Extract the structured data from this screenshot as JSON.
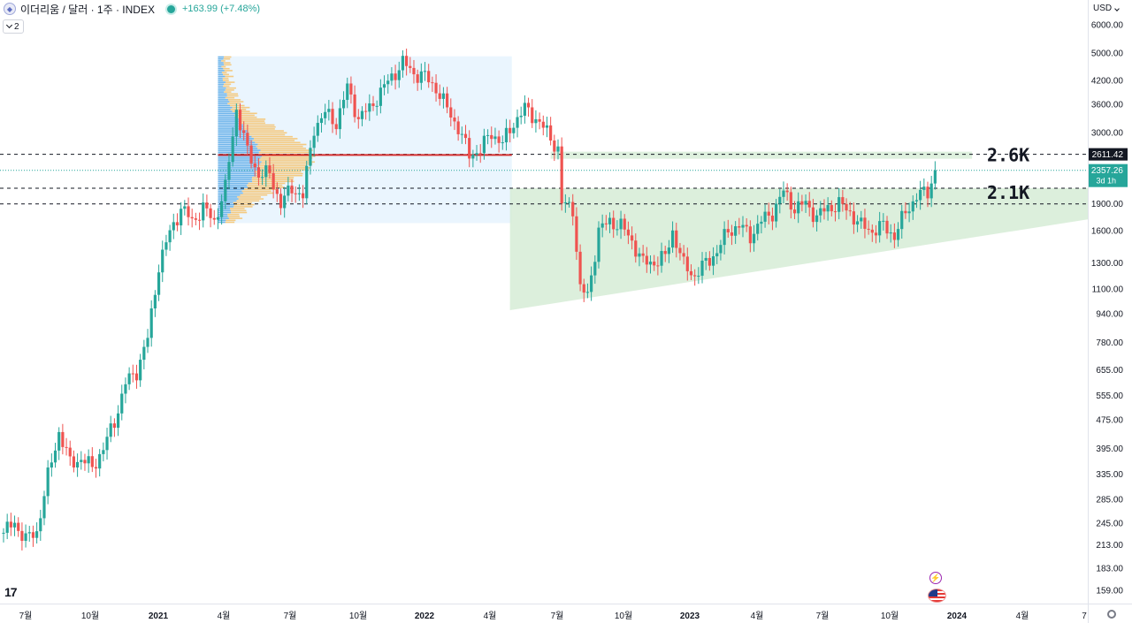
{
  "header": {
    "symbol": "이더리움 / 달러 · 1주 · INDEX",
    "change": "+163.99 (+7.48%)",
    "collapse_count": "2",
    "currency": "USD"
  },
  "icons": [
    "ethereum-icon",
    "market-status-icon",
    "chevron-down-icon",
    "tradingview-logo-icon",
    "flash-event-icon",
    "us-flag-event-icon",
    "gear-icon"
  ],
  "colors": {
    "up": "#26a69a",
    "down": "#ef5350",
    "poc": "#d32f2f",
    "zone_fill": "#d6ecd6",
    "profile_box": "#e3f2fd",
    "profile_blue": "#5aa9e6",
    "profile_orange": "#f6c26b"
  },
  "chart_data": {
    "type": "candlestick",
    "scale": "log",
    "ylim": [
      145,
      6500
    ],
    "y_ticks": [
      "6000.00",
      "5000.00",
      "4200.00",
      "3600.00",
      "3000.00",
      "2611.42",
      "2357.26",
      "1900.00",
      "1600.00",
      "1300.00",
      "1100.00",
      "940.00",
      "780.00",
      "655.00",
      "555.00",
      "475.00",
      "395.00",
      "335.00",
      "285.00",
      "245.00",
      "213.00",
      "183.00",
      "159.00"
    ],
    "x_ticks": [
      "7월",
      "10월",
      "2021",
      "4월",
      "7월",
      "10월",
      "2022",
      "4월",
      "7월",
      "10월",
      "2023",
      "4월",
      "7월",
      "10월",
      "2024",
      "4월",
      "7"
    ],
    "price_label": "2611.42",
    "last_price": "2357.26",
    "countdown": "3d 1h",
    "levels": [
      {
        "label": "2.6K",
        "value": 2611.42
      },
      {
        "label": "2.1K",
        "value": 2100
      },
      {
        "label": "",
        "value": 1900
      }
    ],
    "poc_value": 2600,
    "wedge": {
      "top": 2100,
      "bottom_start": 960,
      "bottom_end": 1720
    },
    "candles_anchor": [
      [
        0,
        230
      ],
      [
        3,
        245
      ],
      [
        6,
        220
      ],
      [
        9,
        232
      ],
      [
        12,
        330
      ],
      [
        15,
        440
      ],
      [
        18,
        360
      ],
      [
        21,
        370
      ],
      [
        24,
        350
      ],
      [
        27,
        395
      ],
      [
        30,
        470
      ],
      [
        33,
        600
      ],
      [
        36,
        650
      ],
      [
        39,
        800
      ],
      [
        42,
        1280
      ],
      [
        45,
        1580
      ],
      [
        48,
        1850
      ],
      [
        51,
        1700
      ],
      [
        54,
        1850
      ],
      [
        57,
        1700
      ],
      [
        60,
        2100
      ],
      [
        63,
        3500
      ],
      [
        66,
        2650
      ],
      [
        69,
        2300
      ],
      [
        72,
        2300
      ],
      [
        75,
        1900
      ],
      [
        78,
        2100
      ],
      [
        81,
        2000
      ],
      [
        84,
        3100
      ],
      [
        87,
        3400
      ],
      [
        90,
        3200
      ],
      [
        93,
        4000
      ],
      [
        96,
        3300
      ],
      [
        99,
        3500
      ],
      [
        102,
        3900
      ],
      [
        105,
        4300
      ],
      [
        108,
        4700
      ],
      [
        111,
        4400
      ],
      [
        114,
        4300
      ],
      [
        117,
        4000
      ],
      [
        120,
        3500
      ],
      [
        123,
        3100
      ],
      [
        126,
        2600
      ],
      [
        129,
        2700
      ],
      [
        132,
        3000
      ],
      [
        135,
        2800
      ],
      [
        138,
        3200
      ],
      [
        141,
        3500
      ],
      [
        144,
        3300
      ],
      [
        147,
        3000
      ],
      [
        148,
        2900
      ],
      [
        150,
        2700
      ],
      [
        151,
        1900
      ],
      [
        154,
        1850
      ],
      [
        156,
        1100
      ],
      [
        158,
        1050
      ],
      [
        161,
        1600
      ],
      [
        164,
        1700
      ],
      [
        167,
        1650
      ],
      [
        170,
        1500
      ],
      [
        173,
        1300
      ],
      [
        176,
        1310
      ],
      [
        179,
        1350
      ],
      [
        181,
        1600
      ],
      [
        184,
        1280
      ],
      [
        187,
        1200
      ],
      [
        190,
        1300
      ],
      [
        193,
        1400
      ],
      [
        196,
        1600
      ],
      [
        199,
        1650
      ],
      [
        202,
        1550
      ],
      [
        205,
        1700
      ],
      [
        208,
        1800
      ],
      [
        211,
        2050
      ],
      [
        214,
        1850
      ],
      [
        217,
        1900
      ],
      [
        220,
        1750
      ],
      [
        223,
        1850
      ],
      [
        226,
        1900
      ],
      [
        229,
        1800
      ],
      [
        232,
        1650
      ],
      [
        235,
        1600
      ],
      [
        238,
        1650
      ],
      [
        241,
        1550
      ],
      [
        244,
        1800
      ],
      [
        247,
        2000
      ],
      [
        250,
        2050
      ],
      [
        252,
        2357
      ]
    ]
  }
}
